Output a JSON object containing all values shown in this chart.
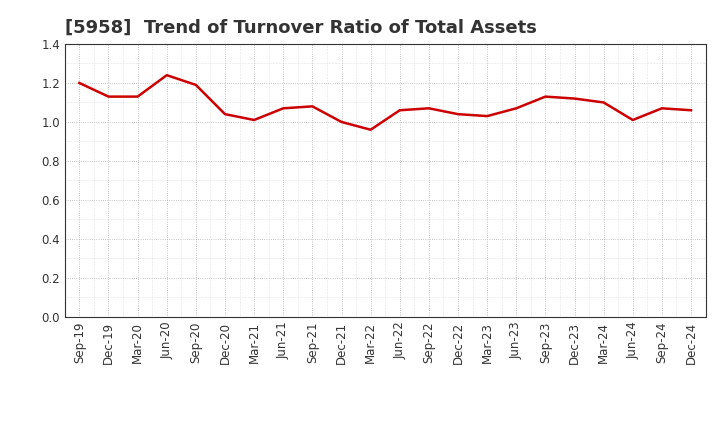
{
  "title": "[5958]  Trend of Turnover Ratio of Total Assets",
  "x_labels": [
    "Sep-19",
    "Dec-19",
    "Mar-20",
    "Jun-20",
    "Sep-20",
    "Dec-20",
    "Mar-21",
    "Jun-21",
    "Sep-21",
    "Dec-21",
    "Mar-22",
    "Jun-22",
    "Sep-22",
    "Dec-22",
    "Mar-23",
    "Jun-23",
    "Sep-23",
    "Dec-23",
    "Mar-24",
    "Jun-24",
    "Sep-24",
    "Dec-24"
  ],
  "y_values": [
    1.2,
    1.13,
    1.13,
    1.24,
    1.19,
    1.04,
    1.01,
    1.07,
    1.08,
    1.0,
    0.96,
    1.06,
    1.07,
    1.04,
    1.03,
    1.07,
    1.13,
    1.12,
    1.1,
    1.01,
    1.07,
    1.06
  ],
  "ylim": [
    0.0,
    1.4
  ],
  "yticks": [
    0.0,
    0.2,
    0.4,
    0.6,
    0.8,
    1.0,
    1.2,
    1.4
  ],
  "line_color": "#cc0000",
  "line_width": 1.8,
  "bg_color": "#ffffff",
  "plot_bg_color": "#ffffff",
  "grid_color": "#aaaaaa",
  "title_fontsize": 13,
  "tick_fontsize": 8.5,
  "title_color": "#333333"
}
